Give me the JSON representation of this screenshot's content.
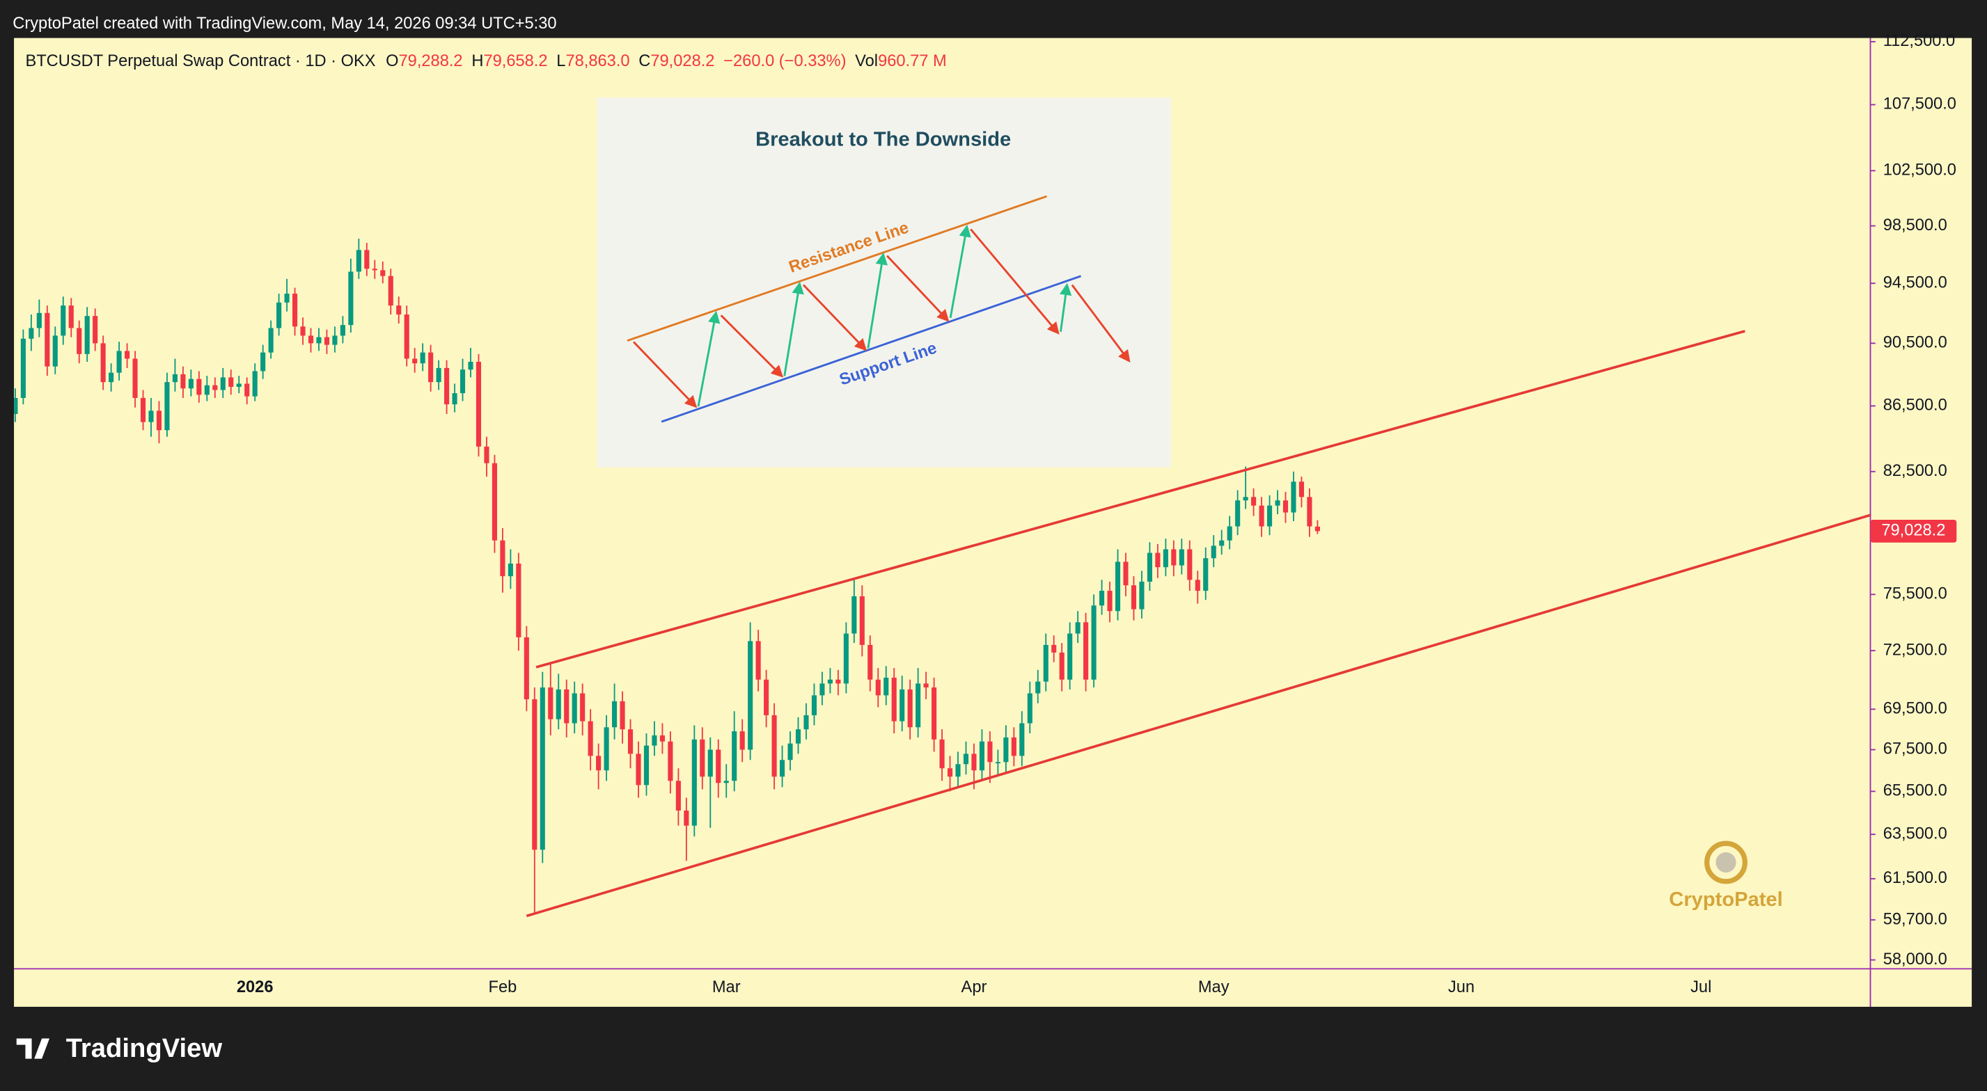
{
  "header": "CryptoPatel created with TradingView.com, May 14, 2026 09:34 UTC+5:30",
  "footer_logo": "TradingView",
  "watermark": "CryptoPatel",
  "legend": {
    "symbol": "BTCUSDT Perpetual Swap Contract · 1D · OKX",
    "items": [
      {
        "label": "O",
        "value": "79,288.2"
      },
      {
        "label": "H",
        "value": "79,658.2"
      },
      {
        "label": "L",
        "value": "78,863.0"
      },
      {
        "label": "C",
        "value": "79,028.2"
      }
    ],
    "change": "−260.0 (−0.33%)",
    "volume_label": "Vol",
    "volume": "960.77 M"
  },
  "inset": {
    "title": "Breakout to The Downside",
    "resistance": "Resistance Line",
    "support": "Support Line"
  },
  "chart_data": {
    "type": "candlestick",
    "log_scale": true,
    "grid": false,
    "up_color": "#089981",
    "down_color": "#f23645",
    "ylim": [
      57630,
      112800
    ],
    "yticks": [
      {
        "value": 112500,
        "label": "112,500.0"
      },
      {
        "value": 107500,
        "label": "107,500.0"
      },
      {
        "value": 102500,
        "label": "102,500.0"
      },
      {
        "value": 98500,
        "label": "98,500.0"
      },
      {
        "value": 94500,
        "label": "94,500.0"
      },
      {
        "value": 90500,
        "label": "90,500.0"
      },
      {
        "value": 86500,
        "label": "86,500.0"
      },
      {
        "value": 82500,
        "label": "82,500.0"
      },
      {
        "value": 75500,
        "label": "75,500.0"
      },
      {
        "value": 72500,
        "label": "72,500.0"
      },
      {
        "value": 69500,
        "label": "69,500.0"
      },
      {
        "value": 67500,
        "label": "67,500.0"
      },
      {
        "value": 65500,
        "label": "65,500.0"
      },
      {
        "value": 63500,
        "label": "63,500.0"
      },
      {
        "value": 61500,
        "label": "61,500.0"
      },
      {
        "value": 59700,
        "label": "59,700.0"
      },
      {
        "value": 58000,
        "label": "58,000.0"
      }
    ],
    "xlim": [
      -0.16,
      232.2
    ],
    "xticks": [
      {
        "value": 30,
        "label": "2026"
      },
      {
        "value": 61,
        "label": "Feb"
      },
      {
        "value": 89,
        "label": "Mar"
      },
      {
        "value": 120,
        "label": "Apr"
      },
      {
        "value": 150,
        "label": "May"
      },
      {
        "value": 181,
        "label": "Jun"
      },
      {
        "value": 211,
        "label": "Jul"
      }
    ],
    "last_price": {
      "value": 79028.2,
      "label": "79,028.2",
      "color": "#f23645"
    },
    "trendlines": [
      {
        "color": "#e53935",
        "points": [
          [
            65.2,
            71640
          ],
          [
            216.5,
            91300
          ]
        ]
      },
      {
        "color": "#e53935",
        "points": [
          [
            64,
            59870
          ],
          [
            232.2,
            79950
          ]
        ]
      }
    ],
    "candles": [
      [
        86000,
        87600,
        85500,
        87000
      ],
      [
        87000,
        91400,
        86600,
        90800
      ],
      [
        90800,
        92400,
        90000,
        91500
      ],
      [
        91500,
        93400,
        90900,
        92500
      ],
      [
        92500,
        93000,
        88400,
        89000
      ],
      [
        89000,
        91600,
        88500,
        91000
      ],
      [
        91000,
        93600,
        90400,
        93000
      ],
      [
        93000,
        93500,
        90900,
        91500
      ],
      [
        91500,
        92000,
        89200,
        89800
      ],
      [
        89800,
        92900,
        89300,
        92300
      ],
      [
        92300,
        92800,
        90000,
        90500
      ],
      [
        90500,
        91000,
        87500,
        88000
      ],
      [
        88000,
        89200,
        87400,
        88600
      ],
      [
        88600,
        90600,
        88100,
        90000
      ],
      [
        90000,
        90500,
        88900,
        89500
      ],
      [
        89500,
        90000,
        86400,
        87000
      ],
      [
        87000,
        87500,
        85000,
        85500
      ],
      [
        85500,
        87000,
        84600,
        86200
      ],
      [
        86200,
        86800,
        84200,
        85000
      ],
      [
        85000,
        88600,
        84600,
        88000
      ],
      [
        88000,
        89500,
        87400,
        88500
      ],
      [
        88500,
        89000,
        87000,
        87600
      ],
      [
        87600,
        88800,
        87100,
        88200
      ],
      [
        88200,
        88700,
        86700,
        87200
      ],
      [
        87200,
        88400,
        86800,
        87800
      ],
      [
        87800,
        88300,
        87000,
        87500
      ],
      [
        87500,
        88900,
        87000,
        88300
      ],
      [
        88300,
        88800,
        87200,
        87700
      ],
      [
        87700,
        88400,
        87300,
        87900
      ],
      [
        87900,
        88300,
        86600,
        87100
      ],
      [
        87100,
        89200,
        86800,
        88700
      ],
      [
        88700,
        90400,
        88200,
        89900
      ],
      [
        89900,
        92000,
        89500,
        91500
      ],
      [
        91500,
        93800,
        91000,
        93200
      ],
      [
        93200,
        94800,
        92600,
        93800
      ],
      [
        93800,
        94200,
        91000,
        91600
      ],
      [
        91600,
        92200,
        90400,
        91000
      ],
      [
        91000,
        91500,
        89900,
        90500
      ],
      [
        90500,
        91500,
        90000,
        90900
      ],
      [
        90900,
        91400,
        89800,
        90400
      ],
      [
        90400,
        91600,
        89900,
        91000
      ],
      [
        91000,
        92300,
        90500,
        91700
      ],
      [
        91700,
        96200,
        91200,
        95300
      ],
      [
        95300,
        97600,
        94800,
        96800
      ],
      [
        96800,
        97300,
        95000,
        95500
      ],
      [
        95500,
        96100,
        94800,
        95400
      ],
      [
        95400,
        96000,
        94500,
        95000
      ],
      [
        95000,
        95500,
        92400,
        93000
      ],
      [
        93000,
        93600,
        91800,
        92400
      ],
      [
        92400,
        93000,
        89000,
        89500
      ],
      [
        89500,
        90200,
        88600,
        89200
      ],
      [
        89200,
        90500,
        88700,
        89900
      ],
      [
        89900,
        90400,
        87400,
        88000
      ],
      [
        88000,
        89400,
        87500,
        88900
      ],
      [
        88900,
        89400,
        86000,
        86600
      ],
      [
        86600,
        87900,
        86100,
        87300
      ],
      [
        87300,
        89500,
        86800,
        88800
      ],
      [
        88800,
        90200,
        88300,
        89300
      ],
      [
        89300,
        89800,
        83400,
        84000
      ],
      [
        84000,
        84600,
        82200,
        83000
      ],
      [
        83000,
        83500,
        77800,
        78500
      ],
      [
        78500,
        79200,
        75600,
        76500
      ],
      [
        76500,
        78000,
        75800,
        77200
      ],
      [
        77200,
        77800,
        72500,
        73200
      ],
      [
        73200,
        73800,
        69400,
        70000
      ],
      [
        70000,
        70600,
        60000,
        62800
      ],
      [
        62800,
        71400,
        62200,
        70600
      ],
      [
        70600,
        71800,
        68200,
        69000
      ],
      [
        69000,
        71300,
        68500,
        70500
      ],
      [
        70500,
        71000,
        68100,
        68800
      ],
      [
        68800,
        70900,
        68300,
        70300
      ],
      [
        70300,
        70800,
        68200,
        68900
      ],
      [
        68900,
        69500,
        66500,
        67200
      ],
      [
        67200,
        67800,
        65600,
        66500
      ],
      [
        66500,
        69200,
        66000,
        68600
      ],
      [
        68600,
        70800,
        68000,
        69900
      ],
      [
        69900,
        70400,
        67800,
        68500
      ],
      [
        68500,
        69000,
        66600,
        67300
      ],
      [
        67300,
        67900,
        65200,
        65800
      ],
      [
        65800,
        68300,
        65300,
        67700
      ],
      [
        67700,
        68900,
        67200,
        68200
      ],
      [
        68200,
        68800,
        67300,
        67900
      ],
      [
        67900,
        68400,
        65400,
        66000
      ],
      [
        66000,
        66600,
        63900,
        64600
      ],
      [
        64600,
        65200,
        62300,
        63900
      ],
      [
        63900,
        68700,
        63400,
        68000
      ],
      [
        68000,
        68600,
        65600,
        66200
      ],
      [
        66200,
        68100,
        63800,
        67500
      ],
      [
        67500,
        68000,
        65200,
        65900
      ],
      [
        65900,
        66800,
        65200,
        66000
      ],
      [
        66000,
        69400,
        65500,
        68400
      ],
      [
        68400,
        69000,
        66900,
        67500
      ],
      [
        67500,
        74000,
        67000,
        73000
      ],
      [
        73000,
        73600,
        70400,
        71000
      ],
      [
        71000,
        71500,
        68600,
        69200
      ],
      [
        69200,
        69800,
        65600,
        66200
      ],
      [
        66200,
        67700,
        65700,
        67000
      ],
      [
        67000,
        68400,
        66500,
        67800
      ],
      [
        67800,
        69100,
        67300,
        68500
      ],
      [
        68500,
        69800,
        68000,
        69200
      ],
      [
        69200,
        70800,
        68700,
        70200
      ],
      [
        70200,
        71400,
        69700,
        70800
      ],
      [
        70800,
        71600,
        70300,
        71000
      ],
      [
        71000,
        71500,
        70200,
        70800
      ],
      [
        70800,
        74000,
        70300,
        73400
      ],
      [
        73400,
        76300,
        72900,
        75400
      ],
      [
        75400,
        76000,
        72200,
        72800
      ],
      [
        72800,
        73300,
        70400,
        71000
      ],
      [
        71000,
        71600,
        69600,
        70200
      ],
      [
        70200,
        71700,
        69700,
        71100
      ],
      [
        71100,
        71600,
        68300,
        68900
      ],
      [
        68900,
        71200,
        68400,
        70500
      ],
      [
        70500,
        71000,
        68000,
        68600
      ],
      [
        68600,
        71600,
        68100,
        70800
      ],
      [
        70800,
        71400,
        70000,
        70600
      ],
      [
        70600,
        71100,
        67400,
        68000
      ],
      [
        68000,
        68500,
        66000,
        66600
      ],
      [
        66600,
        67200,
        65500,
        66200
      ],
      [
        66200,
        67400,
        65700,
        66800
      ],
      [
        66800,
        67900,
        66300,
        67300
      ],
      [
        67300,
        67800,
        65600,
        66500
      ],
      [
        66500,
        68500,
        66000,
        67900
      ],
      [
        67900,
        68400,
        65900,
        66900
      ],
      [
        66900,
        67500,
        66300,
        66900
      ],
      [
        66900,
        68700,
        66400,
        68100
      ],
      [
        68100,
        68600,
        66700,
        67200
      ],
      [
        67200,
        69400,
        66700,
        68800
      ],
      [
        68800,
        70900,
        68300,
        70300
      ],
      [
        70300,
        71500,
        69800,
        70900
      ],
      [
        70900,
        73400,
        70400,
        72800
      ],
      [
        72800,
        73300,
        71900,
        72400
      ],
      [
        72400,
        72900,
        70400,
        71000
      ],
      [
        71000,
        74000,
        70500,
        73400
      ],
      [
        73400,
        74600,
        72900,
        74000
      ],
      [
        74000,
        74500,
        70400,
        71000
      ],
      [
        71000,
        75500,
        70600,
        74900
      ],
      [
        74900,
        76300,
        74400,
        75700
      ],
      [
        75700,
        76200,
        74000,
        74600
      ],
      [
        74600,
        78000,
        74100,
        77300
      ],
      [
        77300,
        77800,
        75400,
        76000
      ],
      [
        76000,
        76500,
        74100,
        74700
      ],
      [
        74700,
        76800,
        74200,
        76200
      ],
      [
        76200,
        78400,
        75700,
        77800
      ],
      [
        77800,
        78300,
        76400,
        77000
      ],
      [
        77000,
        78600,
        76500,
        78000
      ],
      [
        78000,
        78500,
        76500,
        77100
      ],
      [
        77100,
        78600,
        76600,
        78000
      ],
      [
        78000,
        78500,
        75700,
        76300
      ],
      [
        76300,
        76800,
        75000,
        75700
      ],
      [
        75700,
        78100,
        75200,
        77500
      ],
      [
        77500,
        78800,
        77000,
        78200
      ],
      [
        78200,
        79100,
        77700,
        78500
      ],
      [
        78500,
        79900,
        78000,
        79300
      ],
      [
        79300,
        81400,
        78800,
        80800
      ],
      [
        80800,
        82800,
        80300,
        81000
      ],
      [
        81000,
        81500,
        79900,
        80500
      ],
      [
        80500,
        81000,
        78700,
        79300
      ],
      [
        79300,
        81100,
        78800,
        80500
      ],
      [
        80500,
        81400,
        80000,
        80800
      ],
      [
        80800,
        81300,
        79500,
        80100
      ],
      [
        80100,
        82500,
        79600,
        81900
      ],
      [
        81900,
        82200,
        80400,
        81000
      ],
      [
        81000,
        81500,
        78700,
        79300
      ],
      [
        79288.2,
        79658.2,
        78863,
        79028.2
      ]
    ]
  }
}
